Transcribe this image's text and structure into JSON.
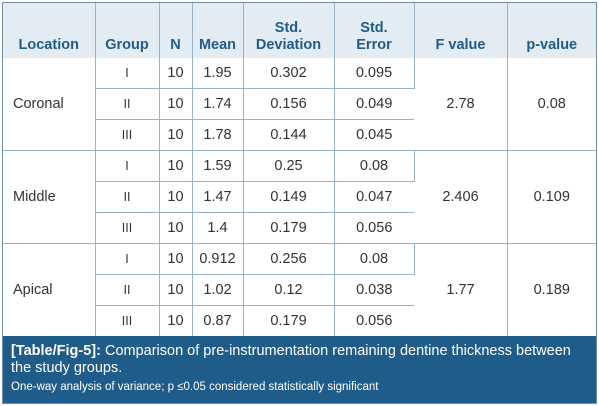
{
  "table": {
    "headers": [
      {
        "l1": "",
        "l2": "Location"
      },
      {
        "l1": "",
        "l2": "Group"
      },
      {
        "l1": "",
        "l2": "N"
      },
      {
        "l1": "",
        "l2": "Mean"
      },
      {
        "l1": "Std.",
        "l2": "Deviation"
      },
      {
        "l1": "Std.",
        "l2": "Error"
      },
      {
        "l1": "",
        "l2": "F value"
      },
      {
        "l1": "",
        "l2": "p-value"
      }
    ],
    "blocks": [
      {
        "location": "Coronal",
        "f_value": "2.78",
        "p_value": "0.08",
        "rows": [
          {
            "group": "I",
            "n": "10",
            "mean": "1.95",
            "sd": "0.302",
            "se": "0.095"
          },
          {
            "group": "II",
            "n": "10",
            "mean": "1.74",
            "sd": "0.156",
            "se": "0.049"
          },
          {
            "group": "III",
            "n": "10",
            "mean": "1.78",
            "sd": "0.144",
            "se": "0.045"
          }
        ]
      },
      {
        "location": "Middle",
        "f_value": "2.406",
        "p_value": "0.109",
        "rows": [
          {
            "group": "I",
            "n": "10",
            "mean": "1.59",
            "sd": "0.25",
            "se": "0.08"
          },
          {
            "group": "II",
            "n": "10",
            "mean": "1.47",
            "sd": "0.149",
            "se": "0.047"
          },
          {
            "group": "III",
            "n": "10",
            "mean": "1.4",
            "sd": "0.179",
            "se": "0.056"
          }
        ]
      },
      {
        "location": "Apical",
        "f_value": "1.77",
        "p_value": "0.189",
        "rows": [
          {
            "group": "I",
            "n": "10",
            "mean": "0.912",
            "sd": "0.256",
            "se": "0.08"
          },
          {
            "group": "II",
            "n": "10",
            "mean": "1.02",
            "sd": "0.12",
            "se": "0.038"
          },
          {
            "group": "III",
            "n": "10",
            "mean": "0.87",
            "sd": "0.179",
            "se": "0.056"
          }
        ]
      }
    ]
  },
  "caption": {
    "label": "[Table/Fig-5]:",
    "text": " Comparison of pre-instrumentation remaining dentine thickness between the study groups.",
    "note": "One-way analysis of variance; p ≤0.05 considered statistically significant"
  },
  "colors": {
    "header_bg": "#e3ecf2",
    "header_text": "#1f5c8a",
    "caption_bg": "#1f5c8a",
    "grid": "#9ab3c6"
  }
}
